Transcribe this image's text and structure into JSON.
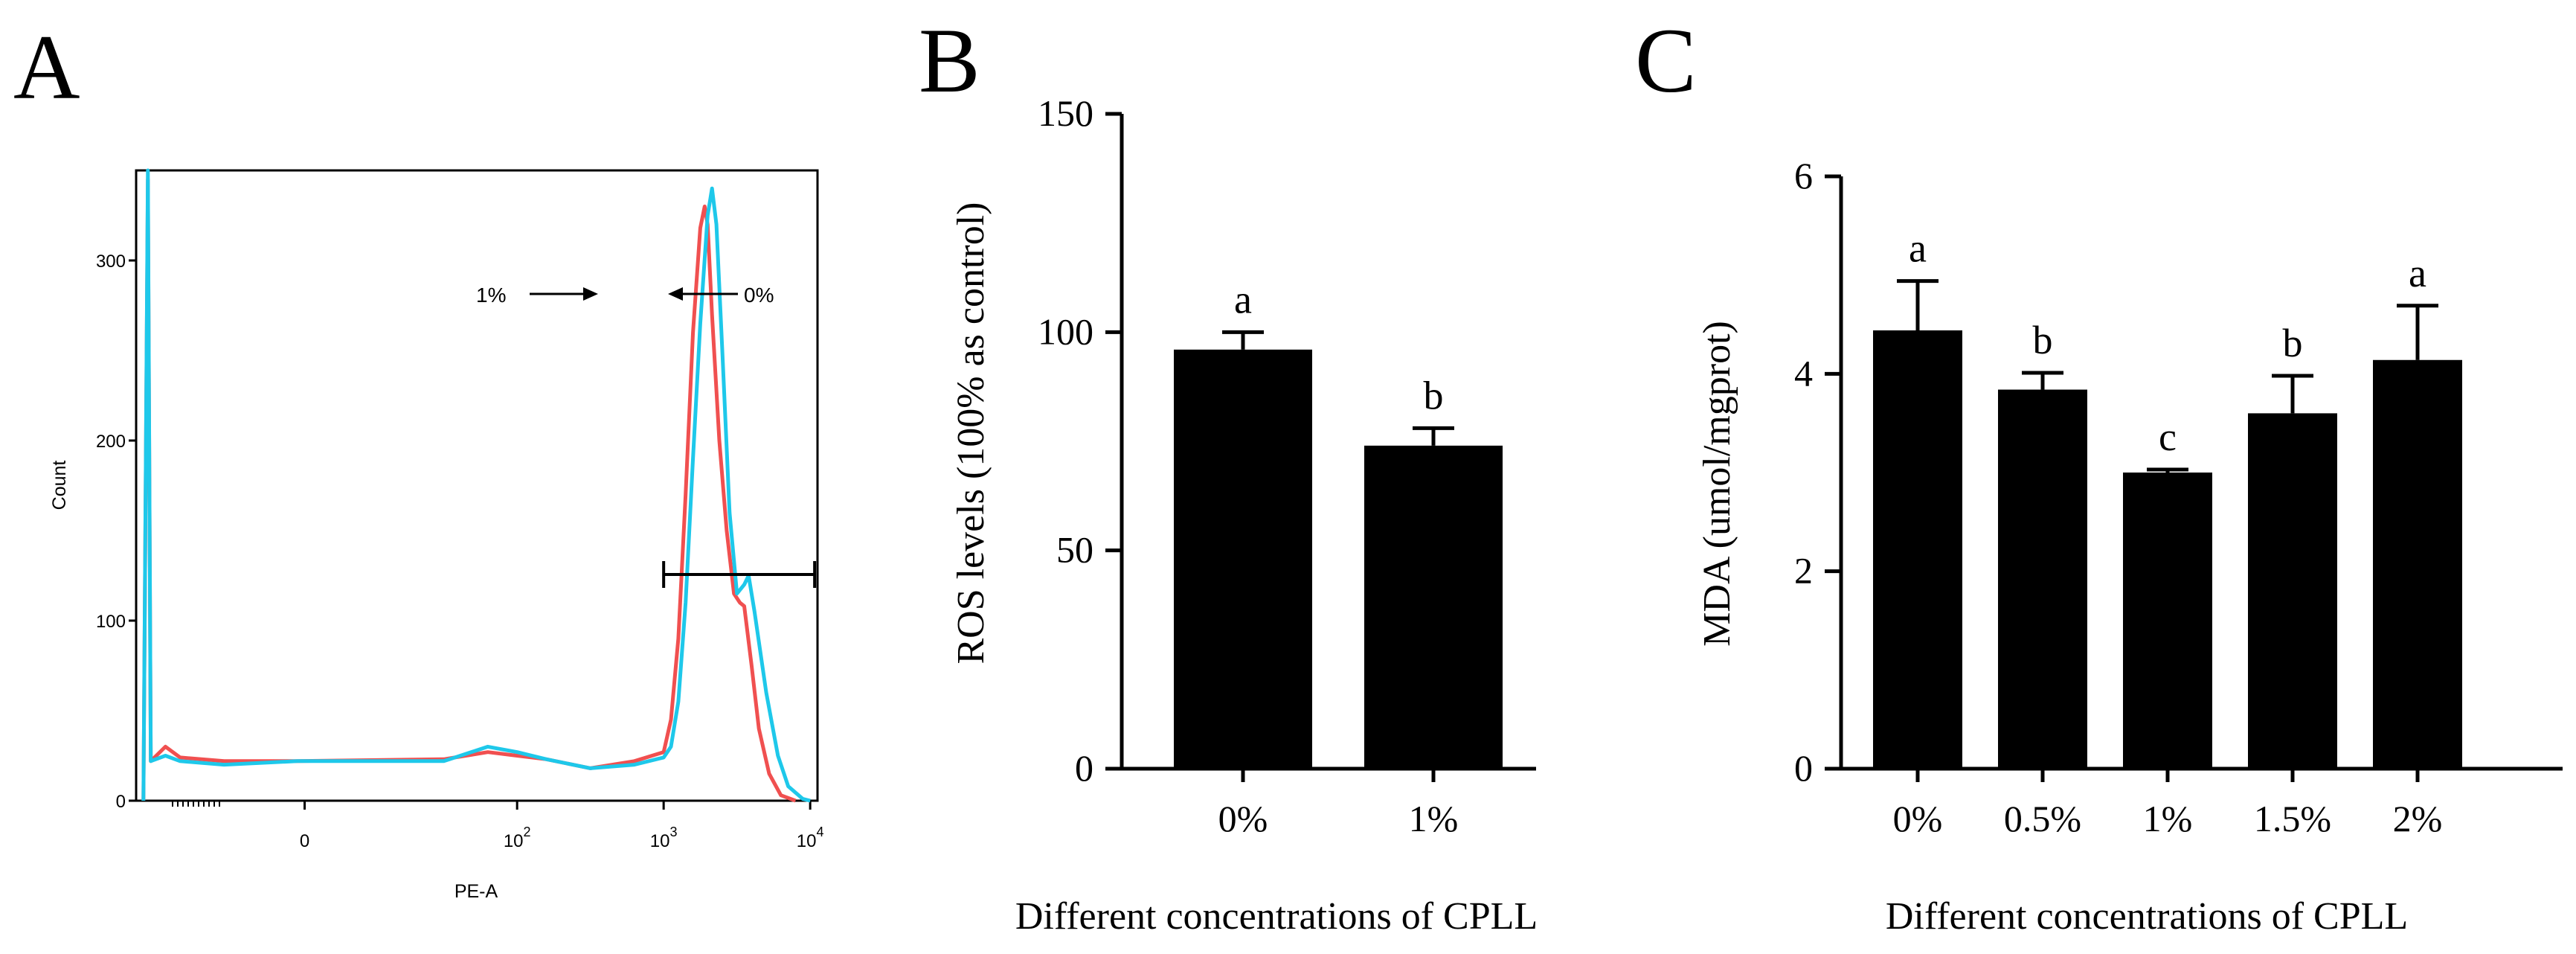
{
  "figure": {
    "panel_a_letter": "A",
    "panel_b_letter": "B",
    "panel_c_letter": "C"
  },
  "chart_data": [
    {
      "type": "line",
      "panel": "A",
      "title": "",
      "xlabel": "PE-A",
      "ylabel": "Count",
      "xscale": "log",
      "xticks": [
        {
          "value": 0,
          "label": "0"
        },
        {
          "value": 100,
          "label": "10",
          "exponent": "2"
        },
        {
          "value": 1000,
          "label": "10",
          "exponent": "3"
        },
        {
          "value": 10000,
          "label": "10",
          "exponent": "4"
        }
      ],
      "yticks": [
        0,
        100,
        200,
        300
      ],
      "ylim": [
        0,
        350
      ],
      "gate_range": [
        1000,
        10000
      ],
      "colors": {
        "red": "#f05050",
        "cyan": "#1ec8ea"
      },
      "series": [
        {
          "name": "1%",
          "color": "#f05050",
          "points": [
            [
              -0.55,
              0
            ],
            [
              -0.52,
              345
            ],
            [
              -0.5,
              22
            ],
            [
              -0.4,
              30
            ],
            [
              -0.3,
              24
            ],
            [
              0,
              22
            ],
            [
              0.5,
              22
            ],
            [
              1.5,
              23
            ],
            [
              1.8,
              27
            ],
            [
              2.0,
              25
            ],
            [
              2.2,
              23
            ],
            [
              2.5,
              18
            ],
            [
              2.8,
              22
            ],
            [
              3.0,
              27
            ],
            [
              3.05,
              45
            ],
            [
              3.1,
              90
            ],
            [
              3.15,
              170
            ],
            [
              3.2,
              260
            ],
            [
              3.25,
              318
            ],
            [
              3.28,
              330
            ],
            [
              3.3,
              320
            ],
            [
              3.33,
              270
            ],
            [
              3.38,
              200
            ],
            [
              3.43,
              150
            ],
            [
              3.48,
              115
            ],
            [
              3.52,
              110
            ],
            [
              3.55,
              108
            ],
            [
              3.6,
              75
            ],
            [
              3.65,
              40
            ],
            [
              3.72,
              15
            ],
            [
              3.8,
              3
            ],
            [
              3.9,
              0
            ]
          ]
        },
        {
          "name": "0%",
          "color": "#1ec8ea",
          "points": [
            [
              -0.55,
              0
            ],
            [
              -0.52,
              350
            ],
            [
              -0.5,
              22
            ],
            [
              -0.4,
              25
            ],
            [
              -0.3,
              22
            ],
            [
              0,
              20
            ],
            [
              0.5,
              22
            ],
            [
              1.5,
              22
            ],
            [
              1.8,
              30
            ],
            [
              2.0,
              27
            ],
            [
              2.2,
              23
            ],
            [
              2.5,
              18
            ],
            [
              2.8,
              20
            ],
            [
              3.0,
              24
            ],
            [
              3.05,
              30
            ],
            [
              3.1,
              55
            ],
            [
              3.15,
              110
            ],
            [
              3.2,
              190
            ],
            [
              3.25,
              265
            ],
            [
              3.3,
              325
            ],
            [
              3.33,
              340
            ],
            [
              3.36,
              320
            ],
            [
              3.4,
              250
            ],
            [
              3.45,
              160
            ],
            [
              3.5,
              115
            ],
            [
              3.55,
              120
            ],
            [
              3.58,
              125
            ],
            [
              3.62,
              105
            ],
            [
              3.7,
              60
            ],
            [
              3.78,
              25
            ],
            [
              3.85,
              8
            ],
            [
              3.95,
              1
            ],
            [
              4.0,
              0
            ]
          ]
        }
      ],
      "annotations": [
        {
          "text": "1%",
          "arrow": "right"
        },
        {
          "text": "0%",
          "arrow": "left"
        }
      ]
    },
    {
      "type": "bar",
      "panel": "B",
      "title": "",
      "xlabel": "Different concentrations of CPLL",
      "ylabel": "ROS levels (100% as control)",
      "categories": [
        "0%",
        "1%"
      ],
      "values": [
        96,
        74
      ],
      "errors": [
        4,
        4
      ],
      "sig_letters": [
        "a",
        "b"
      ],
      "ylim": [
        0,
        150
      ],
      "yticks": [
        0,
        50,
        100,
        150
      ]
    },
    {
      "type": "bar",
      "panel": "C",
      "title": "",
      "xlabel": "Different concentrations of CPLL",
      "ylabel": "MDA (umol/mgprot)",
      "categories": [
        "0%",
        "0.5%",
        "1%",
        "1.5%",
        "2%"
      ],
      "values": [
        4.44,
        3.84,
        3.0,
        3.6,
        4.14
      ],
      "errors": [
        0.5,
        0.17,
        0.03,
        0.38,
        0.55
      ],
      "sig_letters": [
        "a",
        "b",
        "c",
        "b",
        "a"
      ],
      "ylim": [
        0,
        6
      ],
      "yticks": [
        0,
        2,
        4,
        6
      ]
    }
  ]
}
